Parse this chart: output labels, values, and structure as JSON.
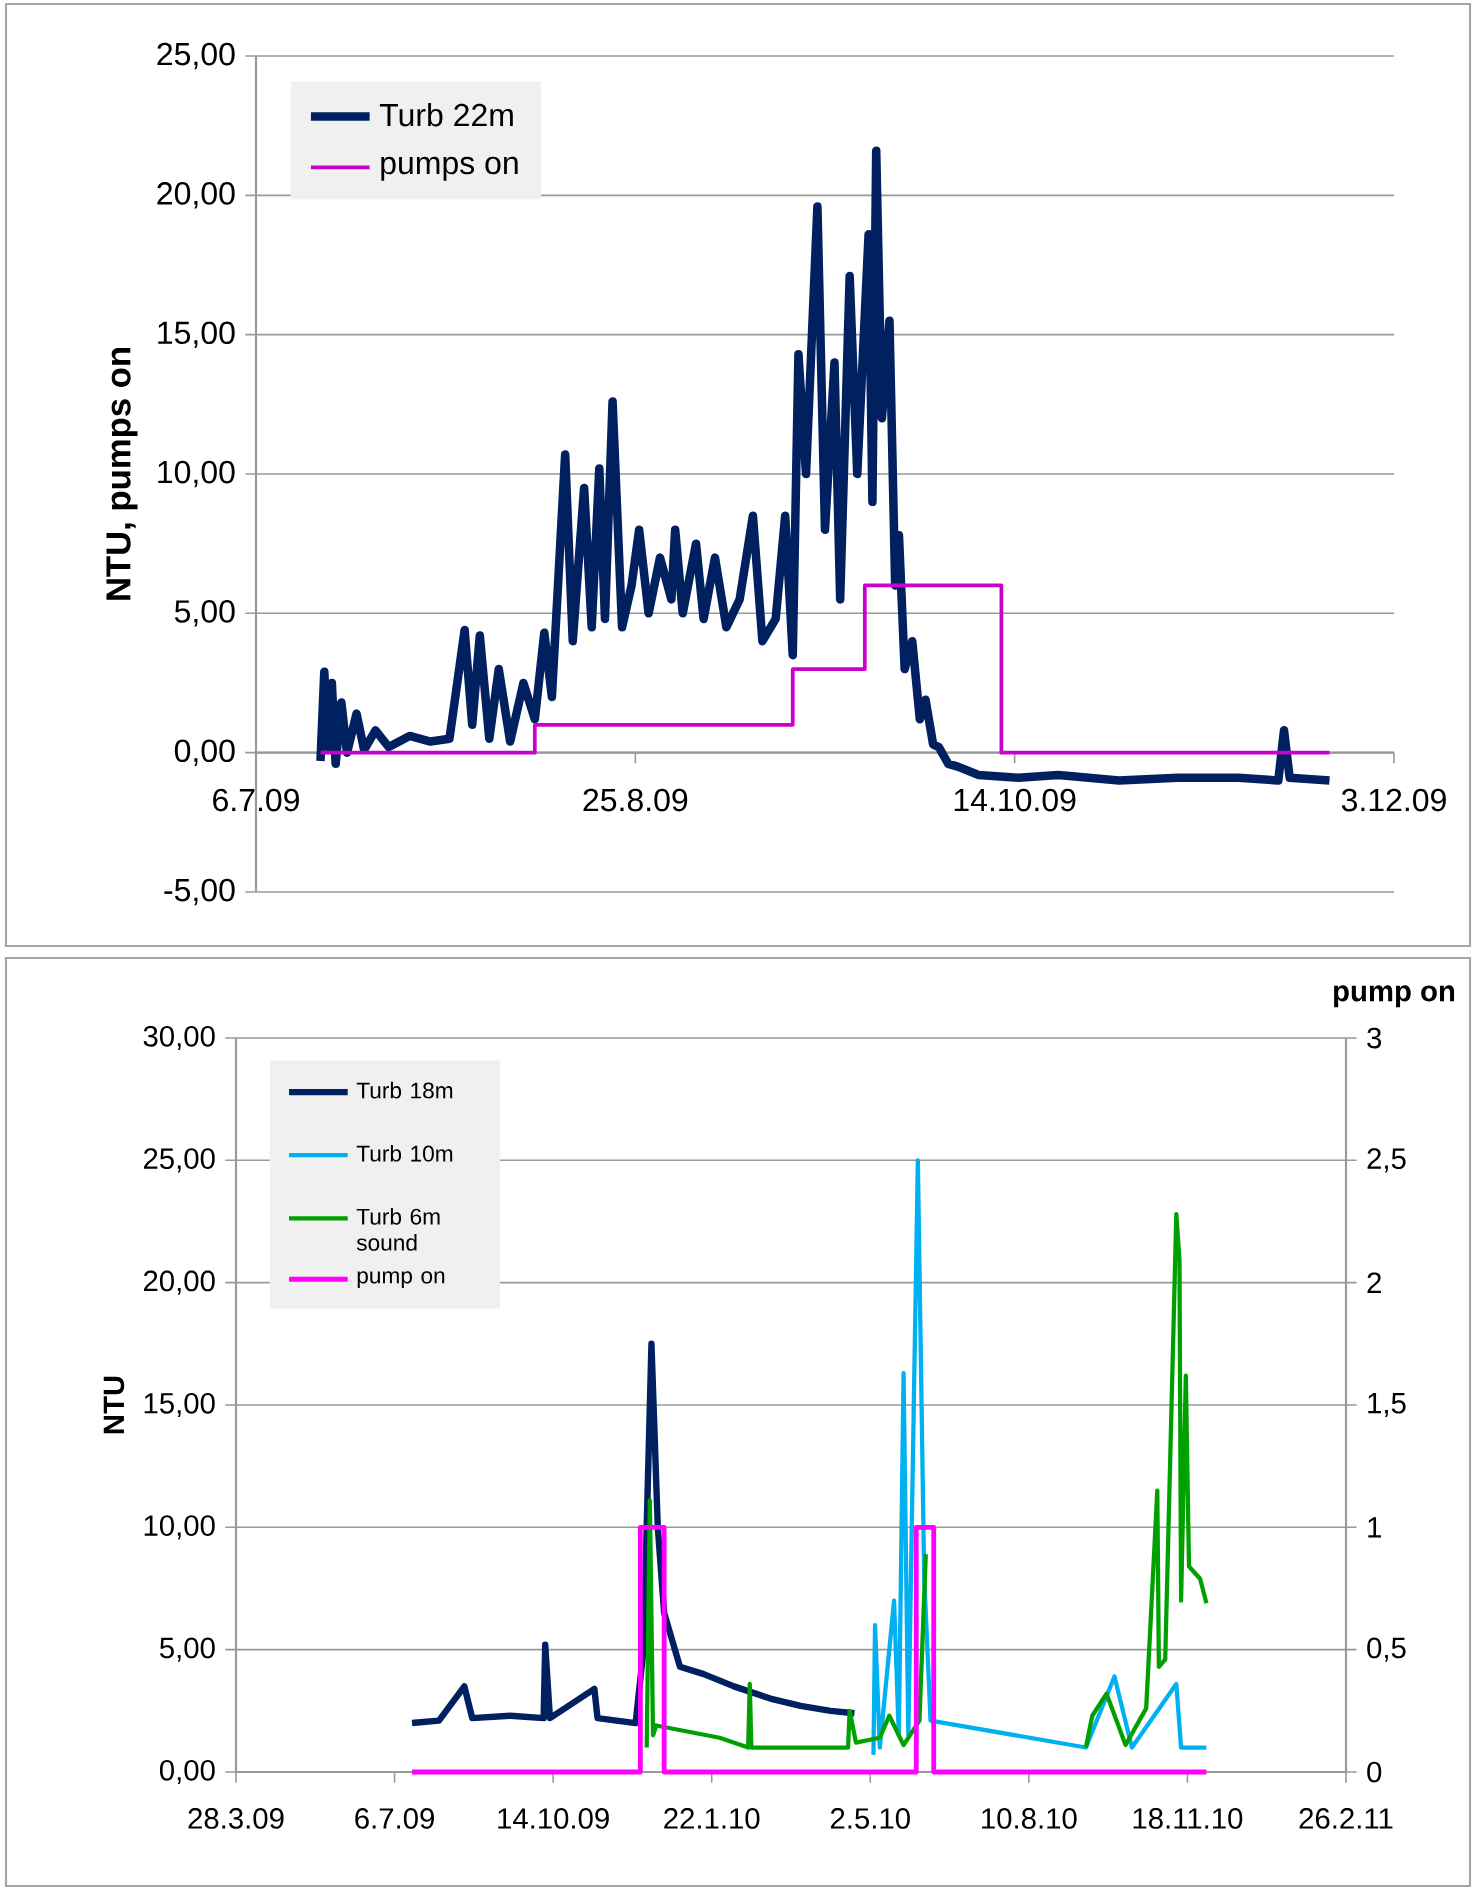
{
  "chart_data": [
    {
      "type": "line",
      "ylabel": "NTU, pumps on",
      "xlim": [
        "2009-07-06",
        "2009-12-03"
      ],
      "xticks": [
        {
          "value": "2009-07-06",
          "label": "6.7.09"
        },
        {
          "value": "2009-08-25",
          "label": "25.8.09"
        },
        {
          "value": "2009-10-14",
          "label": "14.10.09"
        },
        {
          "value": "2009-12-03",
          "label": "3.12.09"
        }
      ],
      "ylim": [
        -5,
        25
      ],
      "yticks": [
        {
          "value": -5,
          "label": "-5,00"
        },
        {
          "value": 0,
          "label": "0,00"
        },
        {
          "value": 5,
          "label": "5,00"
        },
        {
          "value": 10,
          "label": "10,00"
        },
        {
          "value": 15,
          "label": "15,00"
        },
        {
          "value": 20,
          "label": "20,00"
        },
        {
          "value": 25,
          "label": "25,00"
        }
      ],
      "grid": "y",
      "legend": "top left",
      "series": [
        {
          "name": "Turb 22m",
          "color": "#002060",
          "x": [
            "2009-07-14T12:00",
            "2009-07-15T00:00",
            "2009-07-15T12:00",
            "2009-07-16T00:00",
            "2009-07-16T12:00",
            "2009-07-17T06:00",
            "2009-07-18T00:00",
            "2009-07-19T06:00",
            "2009-07-20T06:00",
            "2009-07-21T18:00",
            "2009-07-23T12:00",
            "2009-07-26T06:00",
            "2009-07-29T00:00",
            "2009-07-31T12:00",
            "2009-08-02T12:00",
            "2009-08-03T12:00",
            "2009-08-04T12:00",
            "2009-08-05T18:00",
            "2009-08-07T00:00",
            "2009-08-08T12:00",
            "2009-08-10T06:00",
            "2009-08-11T18:00",
            "2009-08-13T00:00",
            "2009-08-14T00:00",
            "2009-08-15T18:00",
            "2009-08-16T18:00",
            "2009-08-18T06:00",
            "2009-08-19T06:00",
            "2009-08-20T06:00",
            "2009-08-21T00:00",
            "2009-08-22T00:00",
            "2009-08-23T06:00",
            "2009-08-24T12:00",
            "2009-08-25T12:00",
            "2009-08-26T18:00",
            "2009-08-28T06:00",
            "2009-08-29T18:00",
            "2009-08-30T06:00",
            "2009-08-31T06:00",
            "2009-09-02T00:00",
            "2009-09-03T00:00",
            "2009-09-04T12:00",
            "2009-09-06T00:00",
            "2009-09-07T18:00",
            "2009-09-09T12:00",
            "2009-09-10T18:00",
            "2009-09-12T12:00",
            "2009-09-13T18:00",
            "2009-09-14T18:00",
            "2009-09-15T12:00",
            "2009-09-16T12:00",
            "2009-09-18T00:00",
            "2009-09-19T00:00",
            "2009-09-20T06:00",
            "2009-09-21T00:00",
            "2009-09-22T06:00",
            "2009-09-23T06:00",
            "2009-09-24T18:00",
            "2009-09-25T06:00",
            "2009-09-25T18:00",
            "2009-09-26T12:00",
            "2009-09-27T12:00",
            "2009-09-28T06:00",
            "2009-09-28T18:00",
            "2009-09-29T12:00",
            "2009-09-30T12:00",
            "2009-10-01T12:00",
            "2009-10-02T06:00",
            "2009-10-03T06:00",
            "2009-10-04T00:00",
            "2009-10-05T06:00",
            "2009-10-06T12:00",
            "2009-10-09T06:00",
            "2009-10-14T12:00",
            "2009-10-19T18:00",
            "2009-10-27T18:00",
            "2009-11-04T12:00",
            "2009-11-12T12:00",
            "2009-11-17T18:00",
            "2009-11-18T12:00",
            "2009-11-19T06:00",
            "2009-11-24T12:00"
          ],
          "values": [
            -0.3,
            2.9,
            0.2,
            2.5,
            -0.4,
            1.8,
            0.0,
            1.4,
            0.1,
            0.8,
            0.2,
            0.6,
            0.4,
            0.5,
            4.4,
            1.0,
            4.2,
            0.5,
            3.0,
            0.4,
            2.5,
            1.2,
            4.3,
            2.0,
            10.7,
            4.0,
            9.5,
            4.5,
            10.2,
            4.8,
            12.6,
            4.5,
            6.0,
            8.0,
            5.0,
            7.0,
            5.5,
            8.0,
            5.0,
            7.5,
            4.8,
            7.0,
            4.5,
            5.5,
            8.5,
            4.0,
            4.8,
            8.5,
            3.5,
            14.3,
            10.0,
            19.6,
            8.0,
            14.0,
            5.5,
            17.1,
            10.0,
            18.6,
            9.0,
            21.6,
            12.0,
            15.5,
            6.0,
            7.8,
            3.0,
            4.0,
            1.2,
            1.9,
            0.3,
            0.2,
            -0.4,
            -0.5,
            -0.8,
            -0.9,
            -0.8,
            -1.0,
            -0.9,
            -0.9,
            -1.0,
            0.8,
            -0.9,
            -1.0
          ]
        },
        {
          "name": "pumps on",
          "type": "step",
          "color": "#cc00cc",
          "x": [
            "2009-07-14T12:00",
            "2009-08-11T18:00",
            "2009-09-14T18:00",
            "2009-09-24T06:00",
            "2009-10-12T06:00",
            "2009-11-24T12:00"
          ],
          "values": [
            0,
            1,
            3,
            6,
            0,
            0
          ]
        }
      ]
    },
    {
      "type": "line",
      "ylabel": "NTU",
      "y2label": "pump on",
      "xlim": [
        "2009-03-28",
        "2011-02-26"
      ],
      "xticks": [
        {
          "value": "2009-03-28",
          "label": "28.3.09"
        },
        {
          "value": "2009-07-06",
          "label": "6.7.09"
        },
        {
          "value": "2009-10-14",
          "label": "14.10.09"
        },
        {
          "value": "2010-01-22",
          "label": "22.1.10"
        },
        {
          "value": "2010-05-02",
          "label": "2.5.10"
        },
        {
          "value": "2010-08-10",
          "label": "10.8.10"
        },
        {
          "value": "2010-11-18",
          "label": "18.11.10"
        },
        {
          "value": "2011-02-26",
          "label": "26.2.11"
        }
      ],
      "ylim": [
        0,
        30
      ],
      "yticks": [
        {
          "value": 0,
          "label": "0,00"
        },
        {
          "value": 5,
          "label": "5,00"
        },
        {
          "value": 10,
          "label": "10,00"
        },
        {
          "value": 15,
          "label": "15,00"
        },
        {
          "value": 20,
          "label": "20,00"
        },
        {
          "value": 25,
          "label": "25,00"
        },
        {
          "value": 30,
          "label": "30,00"
        }
      ],
      "y2lim": [
        0,
        3
      ],
      "y2ticks": [
        0,
        {
          "value": 0.5,
          "label": "0,5"
        },
        1,
        {
          "value": 1.5,
          "label": "1,5"
        },
        2,
        {
          "value": 2.5,
          "label": "2,5"
        },
        3
      ],
      "grid": "y",
      "legend": "top left",
      "series": [
        {
          "name": "Turb 18m",
          "color": "#002060",
          "x": [
            "2009-07-17",
            "2009-08-03",
            "2009-08-19",
            "2009-08-24",
            "2009-09-17",
            "2009-10-08",
            "2009-10-09",
            "2009-10-12",
            "2009-11-09",
            "2009-11-11",
            "2009-12-05",
            "2009-12-10",
            "2009-12-15",
            "2009-12-19",
            "2009-12-23",
            "2010-01-02",
            "2010-01-17",
            "2010-02-05",
            "2010-02-28",
            "2010-03-19",
            "2010-04-07",
            "2010-04-22"
          ],
          "values": [
            2.0,
            2.1,
            3.5,
            2.2,
            2.3,
            2.2,
            5.2,
            2.2,
            3.4,
            2.2,
            2.0,
            5.0,
            17.5,
            10.0,
            6.5,
            4.3,
            4.0,
            3.5,
            3.0,
            2.7,
            2.5,
            2.4
          ]
        },
        {
          "name": "Turb 10m",
          "color": "#00b0f0",
          "x": [
            "2010-05-04",
            "2010-05-05",
            "2010-05-08",
            "2010-05-17",
            "2010-05-20",
            "2010-05-23",
            "2010-05-26",
            "2010-06-01",
            "2010-06-05",
            "2010-06-09",
            "2010-09-15",
            "2010-10-03",
            "2010-10-14",
            "2010-11-11",
            "2010-11-14",
            "2010-11-30"
          ],
          "values": [
            0.7,
            6.0,
            1.0,
            7.0,
            1.5,
            16.3,
            1.5,
            25.0,
            8.0,
            2.1,
            1.0,
            3.9,
            1.0,
            3.6,
            1.0,
            1.0
          ]
        },
        {
          "name": "Turb 6m sound",
          "color": "#00a000",
          "x": [
            "2009-12-12",
            "2009-12-14",
            "2009-12-16",
            "2009-12-18",
            "2010-01-27",
            "2010-02-14",
            "2010-02-15",
            "2010-02-16",
            "2010-03-19",
            "2010-04-18",
            "2010-04-19",
            "2010-04-23",
            "2010-05-08",
            "2010-05-14",
            "2010-05-23",
            "2010-06-02",
            "2010-06-06",
            "2010-06-11",
            "2010-07-15",
            "2010-09-15",
            "2010-09-19",
            "2010-09-28",
            "2010-10-10",
            "2010-10-23",
            "2010-10-30",
            "2010-10-31",
            "2010-11-04",
            "2010-11-11",
            "2010-11-13",
            "2010-11-14",
            "2010-11-17",
            "2010-11-19",
            "2010-11-26",
            "2010-11-30"
          ],
          "values": [
            1.0,
            11.1,
            1.5,
            1.9,
            1.4,
            1.0,
            3.6,
            1.0,
            1.0,
            1.0,
            2.5,
            1.2,
            1.4,
            2.3,
            1.1,
            2.1,
            8.9,
            null,
            null,
            1.0,
            2.3,
            3.2,
            1.1,
            2.6,
            11.5,
            4.3,
            4.6,
            22.8,
            20.9,
            7.0,
            16.2,
            8.4,
            7.9,
            6.9
          ]
        },
        {
          "name": "pump on",
          "type": "step",
          "axis": "y2",
          "color": "#ff00ff",
          "x": [
            "2009-07-17",
            "2009-12-08",
            "2009-12-23",
            "2010-05-31",
            "2010-06-11",
            "2010-11-30"
          ],
          "values": [
            0,
            1,
            0,
            1,
            0,
            0
          ]
        }
      ]
    }
  ]
}
